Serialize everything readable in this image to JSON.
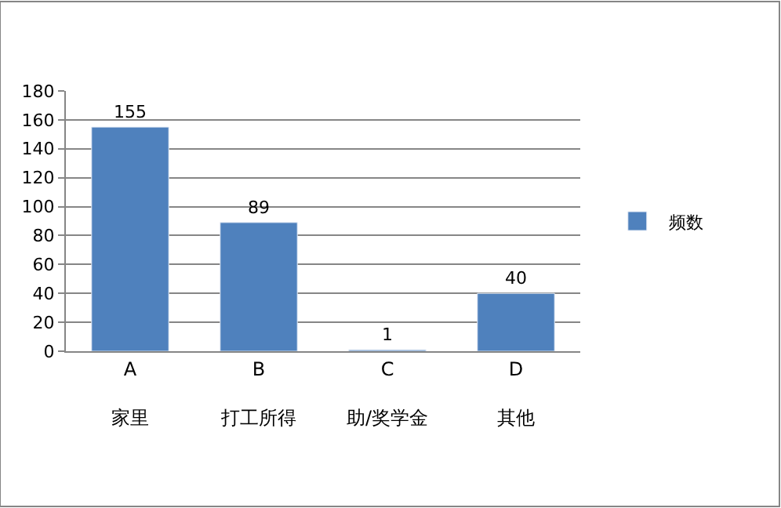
{
  "chart_data": {
    "type": "bar",
    "categories": [
      "A\n家里",
      "B\n打工所得",
      "C\n助/奖学金",
      "D\n其他"
    ],
    "series": [
      {
        "name": "频数",
        "color": "#4f81bd",
        "values": [
          155,
          89,
          1,
          40
        ]
      }
    ],
    "ylim": [
      0,
      180
    ],
    "yticks": [
      0,
      20,
      40,
      60,
      80,
      100,
      120,
      140,
      160,
      180
    ],
    "grid": "y",
    "legend": "right",
    "data_labels": true
  }
}
